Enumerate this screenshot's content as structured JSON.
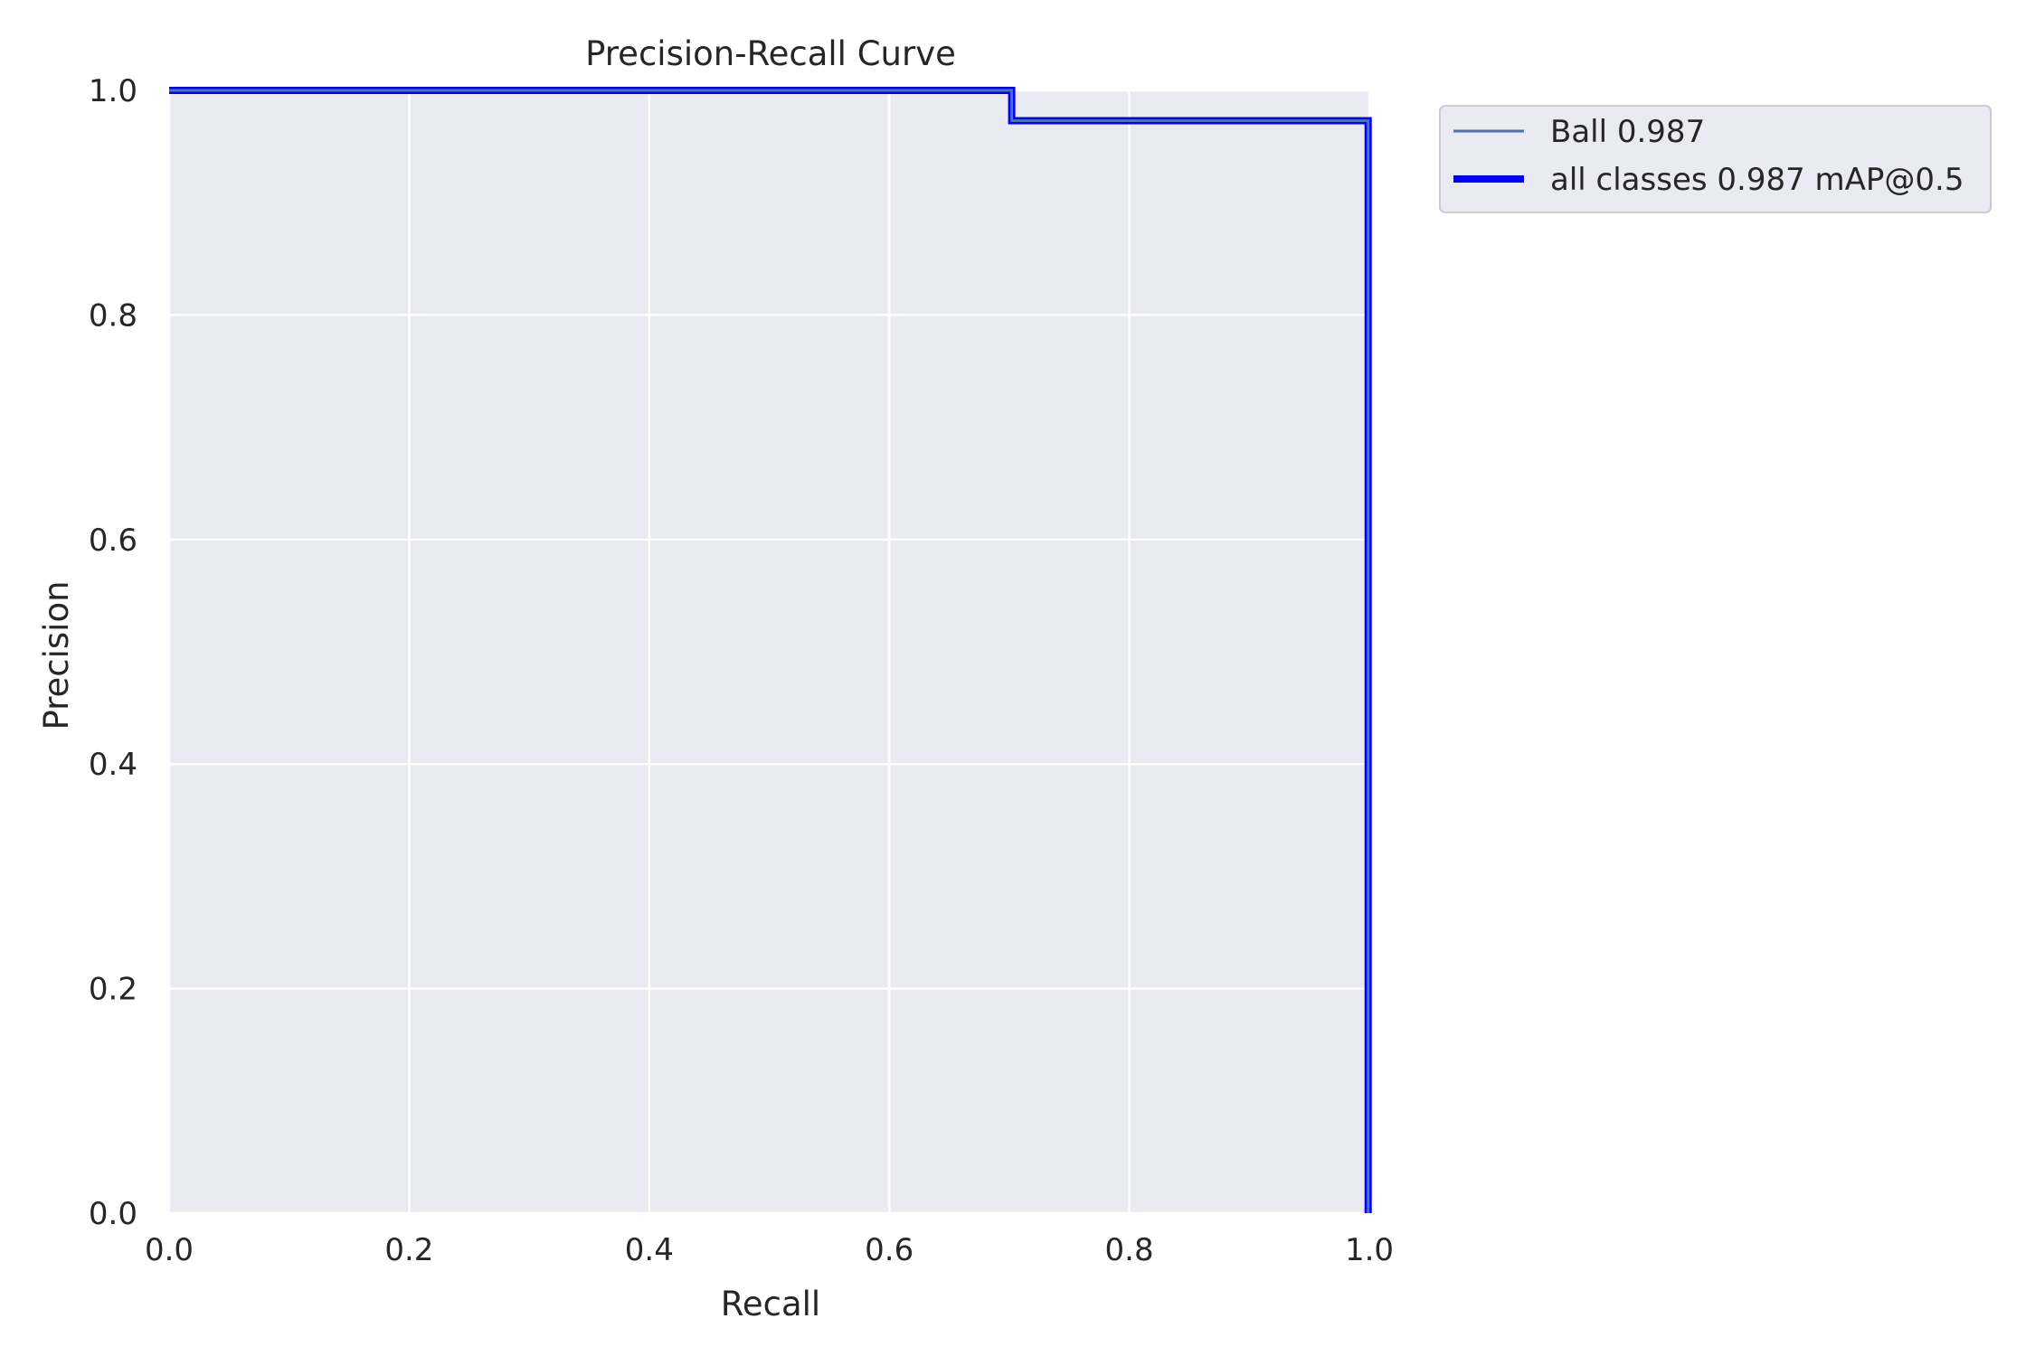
{
  "chart_data": {
    "type": "line",
    "title": "Precision-Recall Curve",
    "xlabel": "Recall",
    "ylabel": "Precision",
    "xlim": [
      0.0,
      1.0
    ],
    "ylim": [
      0.0,
      1.0
    ],
    "xticks": [
      "0.0",
      "0.2",
      "0.4",
      "0.6",
      "0.8",
      "1.0"
    ],
    "yticks": [
      "0.0",
      "0.2",
      "0.4",
      "0.6",
      "0.8",
      "1.0"
    ],
    "grid": true,
    "legend_position": "outside-top-right",
    "series": [
      {
        "name": "Ball 0.987",
        "color": "#4c72b0",
        "line_width": "thin",
        "x": [
          0.0,
          0.702,
          0.702,
          0.999,
          0.999
        ],
        "y": [
          1.0,
          1.0,
          0.973,
          0.973,
          0.0
        ]
      },
      {
        "name": "all classes 0.987 mAP@0.5",
        "color": "#0000ff",
        "line_width": "thick",
        "x": [
          0.0,
          0.702,
          0.702,
          0.999,
          0.999
        ],
        "y": [
          1.0,
          1.0,
          0.973,
          0.973,
          0.0
        ]
      }
    ],
    "colors": {
      "plot_background": "#eaeaf2",
      "grid": "#ffffff",
      "text": "#262626"
    }
  }
}
